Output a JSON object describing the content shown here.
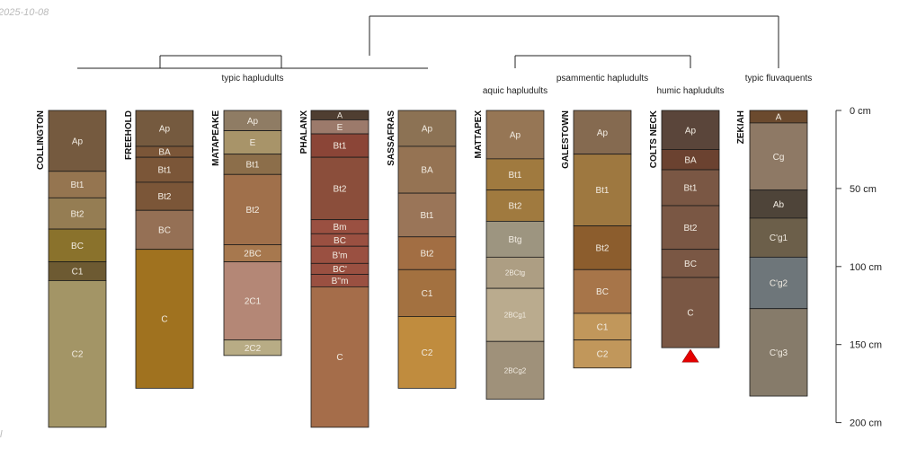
{
  "stamp": {
    "date": "2025-10-08",
    "mark": "l"
  },
  "chart_data": {
    "type": "soil-profile-sketch",
    "depth_unit": "cm",
    "ylim": [
      0,
      200
    ],
    "depth_axis": {
      "ticks": [
        0,
        50,
        100,
        150,
        200
      ],
      "tick_labels": [
        "0 cm",
        "50 cm",
        "100 cm",
        "150 cm",
        "200 cm"
      ]
    },
    "groups": [
      {
        "name": "typic hapludults",
        "profiles": [
          "COLLINGTON",
          "FREEHOLD",
          "MATAPEAKE",
          "PHALANX",
          "SASSAFRAS"
        ]
      },
      {
        "name": "aquic hapludults",
        "profiles": [
          "MATTAPEX"
        ]
      },
      {
        "name": "psammentic hapludults",
        "profiles": [
          "GALESTOWN"
        ]
      },
      {
        "name": "humic hapludults",
        "profiles": [
          "COLTS NECK"
        ]
      },
      {
        "name": "typic fluvaquents",
        "profiles": [
          "ZEKIAH"
        ]
      }
    ],
    "profiles": [
      {
        "name": "COLLINGTON",
        "max_depth_truncated": false,
        "horizons": [
          {
            "name": "Ap",
            "top": 0,
            "bottom": 39,
            "color": "#755a3f"
          },
          {
            "name": "Bt1",
            "top": 39,
            "bottom": 56,
            "color": "#957550"
          },
          {
            "name": "Bt2",
            "top": 56,
            "bottom": 76,
            "color": "#957d53"
          },
          {
            "name": "BC",
            "top": 76,
            "bottom": 97,
            "color": "#8a722c"
          },
          {
            "name": "C1",
            "top": 97,
            "bottom": 109,
            "color": "#6d5a32"
          },
          {
            "name": "C2",
            "top": 109,
            "bottom": 203,
            "color": "#a39566"
          }
        ]
      },
      {
        "name": "FREEHOLD",
        "max_depth_truncated": false,
        "horizons": [
          {
            "name": "Ap",
            "top": 0,
            "bottom": 23,
            "color": "#755a3f"
          },
          {
            "name": "BA",
            "top": 23,
            "bottom": 30,
            "color": "#7b5638"
          },
          {
            "name": "Bt1",
            "top": 30,
            "bottom": 46,
            "color": "#7b5638"
          },
          {
            "name": "Bt2",
            "top": 46,
            "bottom": 64,
            "color": "#7b5638"
          },
          {
            "name": "BC",
            "top": 64,
            "bottom": 89,
            "color": "#957055"
          },
          {
            "name": "C",
            "top": 89,
            "bottom": 178,
            "color": "#a0721f"
          }
        ]
      },
      {
        "name": "MATAPEAKE",
        "max_depth_truncated": false,
        "horizons": [
          {
            "name": "Ap",
            "top": 0,
            "bottom": 13,
            "color": "#8f7c64"
          },
          {
            "name": "E",
            "top": 13,
            "bottom": 28,
            "color": "#a89469"
          },
          {
            "name": "Bt1",
            "top": 28,
            "bottom": 41,
            "color": "#8c6e4a"
          },
          {
            "name": "Bt2",
            "top": 41,
            "bottom": 86,
            "color": "#a0704b"
          },
          {
            "name": "2BC",
            "top": 86,
            "bottom": 97,
            "color": "#a7784e"
          },
          {
            "name": "2C1",
            "top": 97,
            "bottom": 147,
            "color": "#b48776"
          },
          {
            "name": "2C2",
            "top": 147,
            "bottom": 157,
            "color": "#b8ac85"
          }
        ]
      },
      {
        "name": "PHALANX",
        "max_depth_truncated": false,
        "horizons": [
          {
            "name": "A",
            "top": 0,
            "bottom": 6,
            "color": "#4f3e31"
          },
          {
            "name": "E",
            "top": 6,
            "bottom": 15,
            "color": "#9c7a6b"
          },
          {
            "name": "Bt1",
            "top": 15,
            "bottom": 30,
            "color": "#8b4537"
          },
          {
            "name": "Bt2",
            "top": 30,
            "bottom": 70,
            "color": "#8b4e3b"
          },
          {
            "name": "Bm",
            "top": 70,
            "bottom": 79,
            "color": "#9a5041"
          },
          {
            "name": "BC",
            "top": 79,
            "bottom": 87,
            "color": "#9a5041"
          },
          {
            "name": "B'm",
            "top": 87,
            "bottom": 98,
            "color": "#9a5041"
          },
          {
            "name": "BC'",
            "top": 98,
            "bottom": 105,
            "color": "#9a5041"
          },
          {
            "name": "B''m",
            "top": 105,
            "bottom": 113,
            "color": "#9a5041"
          },
          {
            "name": "C",
            "top": 113,
            "bottom": 203,
            "color": "#a56d4a"
          }
        ]
      },
      {
        "name": "SASSAFRAS",
        "max_depth_truncated": false,
        "horizons": [
          {
            "name": "Ap",
            "top": 0,
            "bottom": 23,
            "color": "#8c7254"
          },
          {
            "name": "BA",
            "top": 23,
            "bottom": 53,
            "color": "#957353"
          },
          {
            "name": "Bt1",
            "top": 53,
            "bottom": 81,
            "color": "#9a7558"
          },
          {
            "name": "Bt2",
            "top": 81,
            "bottom": 102,
            "color": "#a26e43"
          },
          {
            "name": "C1",
            "top": 102,
            "bottom": 132,
            "color": "#a37140"
          },
          {
            "name": "C2",
            "top": 132,
            "bottom": 178,
            "color": "#c08c3e"
          }
        ]
      },
      {
        "name": "MATTAPEX",
        "max_depth_truncated": false,
        "horizons": [
          {
            "name": "Ap",
            "top": 0,
            "bottom": 31,
            "color": "#967655"
          },
          {
            "name": "Bt1",
            "top": 31,
            "bottom": 51,
            "color": "#a07a3f"
          },
          {
            "name": "Bt2",
            "top": 51,
            "bottom": 71,
            "color": "#a07a3f"
          },
          {
            "name": "Btg",
            "top": 71,
            "bottom": 94,
            "color": "#9d9580"
          },
          {
            "name": "2BCtg",
            "top": 94,
            "bottom": 114,
            "color": "#ad9e83"
          },
          {
            "name": "2BCg1",
            "top": 114,
            "bottom": 148,
            "color": "#baab8e"
          },
          {
            "name": "2BCg2",
            "top": 148,
            "bottom": 185,
            "color": "#9f917a"
          }
        ]
      },
      {
        "name": "GALESTOWN",
        "max_depth_truncated": false,
        "horizons": [
          {
            "name": "Ap",
            "top": 0,
            "bottom": 28,
            "color": "#856a50"
          },
          {
            "name": "Bt1",
            "top": 28,
            "bottom": 74,
            "color": "#9e7840"
          },
          {
            "name": "Bt2",
            "top": 74,
            "bottom": 102,
            "color": "#8c5d2d"
          },
          {
            "name": "BC",
            "top": 102,
            "bottom": 130,
            "color": "#a77549"
          },
          {
            "name": "C1",
            "top": 130,
            "bottom": 147,
            "color": "#c1975b"
          },
          {
            "name": "C2",
            "top": 147,
            "bottom": 165,
            "color": "#c1975b"
          }
        ]
      },
      {
        "name": "COLTS NECK",
        "max_depth_truncated": true,
        "horizons": [
          {
            "name": "Ap",
            "top": 0,
            "bottom": 25,
            "color": "#5a453a"
          },
          {
            "name": "BA",
            "top": 25,
            "bottom": 38,
            "color": "#6b4230"
          },
          {
            "name": "Bt1",
            "top": 38,
            "bottom": 61,
            "color": "#7a5744"
          },
          {
            "name": "Bt2",
            "top": 61,
            "bottom": 89,
            "color": "#7a5744"
          },
          {
            "name": "BC",
            "top": 89,
            "bottom": 107,
            "color": "#7a5744"
          },
          {
            "name": "C",
            "top": 107,
            "bottom": 152,
            "color": "#7a5744"
          }
        ]
      },
      {
        "name": "ZEKIAH",
        "max_depth_truncated": false,
        "horizons": [
          {
            "name": "A",
            "top": 0,
            "bottom": 8,
            "color": "#6b4a2e"
          },
          {
            "name": "Cg",
            "top": 8,
            "bottom": 51,
            "color": "#8e7965"
          },
          {
            "name": "Ab",
            "top": 51,
            "bottom": 69,
            "color": "#4e4439"
          },
          {
            "name": "C'g1",
            "top": 69,
            "bottom": 94,
            "color": "#6c5f4a"
          },
          {
            "name": "C'g2",
            "top": 94,
            "bottom": 127,
            "color": "#6e767a"
          },
          {
            "name": "C'g3",
            "top": 127,
            "bottom": 183,
            "color": "#867b6a"
          }
        ]
      }
    ]
  }
}
